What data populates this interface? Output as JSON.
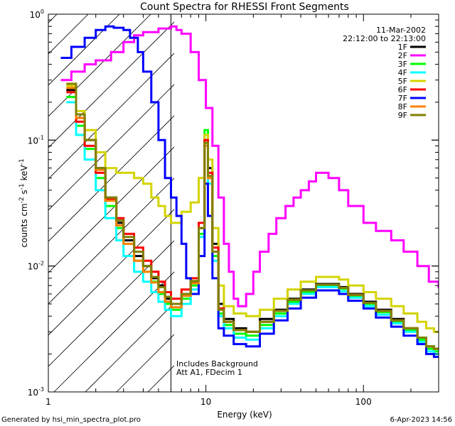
{
  "footer": {
    "generated_by": "Generated by hsi_min_spectra_plot.pro",
    "date": "6-Apr-2023 14:56"
  },
  "chart_data": {
    "type": "line",
    "title": "Count Spectra for RHESSI Front Segments",
    "xlabel": "Energy (keV)",
    "ylabel_parts": [
      "counts cm",
      "-2",
      " s",
      "-1",
      " keV",
      "-1"
    ],
    "x_scale": "log",
    "y_scale": "log",
    "xlim": [
      1,
      300
    ],
    "ylim": [
      0.001,
      1.0
    ],
    "x_ticks": [
      {
        "value": 1,
        "label": "1"
      },
      {
        "value": 10,
        "label": "10"
      },
      {
        "value": 100,
        "label": "100"
      }
    ],
    "y_ticks": [
      {
        "value": 1.0,
        "base": "10",
        "exp": "0"
      },
      {
        "value": 0.1,
        "base": "10",
        "exp": "-1"
      },
      {
        "value": 0.01,
        "base": "10",
        "exp": "-2"
      },
      {
        "value": 0.001,
        "base": "10",
        "exp": "-3"
      }
    ],
    "date": "11-Mar-2002",
    "time_range": "22:12:00 to 22:13:00",
    "hatched_region_max_energy": 6.0,
    "annotations": [
      "Includes Background",
      "Att A1, FDecim 1"
    ],
    "legend_position": "top-right",
    "series": [
      {
        "name": "1F",
        "color": "#000000",
        "energy": [
          1.3,
          1.5,
          1.7,
          2.0,
          2.3,
          2.7,
          3.0,
          3.5,
          4.0,
          4.5,
          5.0,
          5.5,
          6.0,
          7.0,
          8.0,
          9.0,
          9.8,
          10.3,
          11.0,
          12.0,
          13.0,
          15.0,
          18.0,
          22.0,
          27.0,
          33.0,
          40.0,
          50.0,
          60.0,
          70.0,
          80.0,
          100.0,
          120.0,
          150.0,
          180.0,
          220.0,
          250.0,
          280.0
        ],
        "values": [
          0.25,
          0.15,
          0.1,
          0.06,
          0.035,
          0.022,
          0.016,
          0.012,
          0.01,
          0.008,
          0.007,
          0.0055,
          0.005,
          0.006,
          0.0075,
          0.02,
          0.1,
          0.06,
          0.015,
          0.005,
          0.0038,
          0.0032,
          0.003,
          0.0038,
          0.0045,
          0.0055,
          0.0065,
          0.0072,
          0.0072,
          0.0068,
          0.006,
          0.0052,
          0.0045,
          0.0038,
          0.0032,
          0.0027,
          0.0023,
          0.0022
        ]
      },
      {
        "name": "2F",
        "color": "#ff00ff",
        "energy": [
          1.2,
          1.4,
          1.7,
          2.0,
          2.5,
          3.0,
          3.5,
          4.0,
          5.0,
          6.0,
          6.5,
          7.0,
          8.0,
          9.0,
          10.0,
          11.0,
          12.0,
          13.0,
          14.0,
          15.0,
          16.0,
          18.0,
          20.0,
          22.0,
          25.0,
          28.0,
          32.0,
          36.0,
          40.0,
          45.0,
          50.0,
          55.0,
          60.0,
          70.0,
          80.0,
          100.0,
          120.0,
          150.0,
          180.0,
          220.0,
          260.0,
          300.0
        ],
        "values": [
          0.3,
          0.35,
          0.4,
          0.43,
          0.5,
          0.6,
          0.68,
          0.72,
          0.77,
          0.8,
          0.75,
          0.7,
          0.5,
          0.3,
          0.18,
          0.09,
          0.035,
          0.015,
          0.009,
          0.0055,
          0.0048,
          0.006,
          0.009,
          0.013,
          0.018,
          0.024,
          0.03,
          0.035,
          0.04,
          0.047,
          0.055,
          0.055,
          0.05,
          0.04,
          0.03,
          0.022,
          0.019,
          0.016,
          0.013,
          0.01,
          0.0075,
          0.0068
        ]
      },
      {
        "name": "3F",
        "color": "#00ff00",
        "energy": [
          1.3,
          1.5,
          1.7,
          2.0,
          2.3,
          2.7,
          3.0,
          3.5,
          4.0,
          4.5,
          5.0,
          5.5,
          6.0,
          7.0,
          8.0,
          9.0,
          9.8,
          10.3,
          11.0,
          12.0,
          13.0,
          15.0,
          18.0,
          22.0,
          27.0,
          33.0,
          40.0,
          50.0,
          60.0,
          70.0,
          80.0,
          100.0,
          120.0,
          150.0,
          180.0,
          220.0,
          250.0,
          280.0
        ],
        "values": [
          0.22,
          0.13,
          0.085,
          0.05,
          0.03,
          0.02,
          0.015,
          0.011,
          0.009,
          0.0075,
          0.006,
          0.005,
          0.0045,
          0.0055,
          0.007,
          0.018,
          0.12,
          0.05,
          0.012,
          0.0042,
          0.0034,
          0.0029,
          0.0028,
          0.0034,
          0.0042,
          0.0052,
          0.0062,
          0.007,
          0.007,
          0.0066,
          0.0058,
          0.005,
          0.0043,
          0.0036,
          0.0031,
          0.0026,
          0.0022,
          0.0021
        ]
      },
      {
        "name": "4F",
        "color": "#00ffff",
        "energy": [
          1.3,
          1.5,
          1.7,
          2.0,
          2.3,
          2.7,
          3.0,
          3.5,
          4.0,
          4.5,
          5.0,
          5.5,
          6.0,
          7.0,
          8.0,
          9.0,
          9.8,
          10.3,
          11.0,
          12.0,
          13.0,
          15.0,
          18.0,
          22.0,
          27.0,
          33.0,
          40.0,
          50.0,
          60.0,
          70.0,
          80.0,
          100.0,
          120.0,
          150.0,
          180.0,
          220.0,
          250.0,
          280.0
        ],
        "values": [
          0.2,
          0.11,
          0.07,
          0.04,
          0.024,
          0.016,
          0.012,
          0.009,
          0.0075,
          0.0062,
          0.0052,
          0.0045,
          0.004,
          0.005,
          0.0065,
          0.017,
          0.09,
          0.045,
          0.011,
          0.004,
          0.0032,
          0.0027,
          0.0026,
          0.0032,
          0.004,
          0.005,
          0.006,
          0.0068,
          0.0068,
          0.0063,
          0.0056,
          0.0048,
          0.0041,
          0.0035,
          0.003,
          0.0025,
          0.0021,
          0.002
        ]
      },
      {
        "name": "5F",
        "color": "#d4d400",
        "energy": [
          1.3,
          1.5,
          1.7,
          2.0,
          2.3,
          2.7,
          3.0,
          3.5,
          4.0,
          4.5,
          5.0,
          5.5,
          6.0,
          7.0,
          8.0,
          9.0,
          9.8,
          10.3,
          11.0,
          12.0,
          13.0,
          15.0,
          18.0,
          22.0,
          27.0,
          33.0,
          40.0,
          50.0,
          60.0,
          70.0,
          80.0,
          100.0,
          120.0,
          150.0,
          180.0,
          220.0,
          250.0,
          280.0
        ],
        "values": [
          0.27,
          0.17,
          0.12,
          0.08,
          0.06,
          0.055,
          0.055,
          0.05,
          0.045,
          0.035,
          0.03,
          0.025,
          0.022,
          0.027,
          0.032,
          0.05,
          0.11,
          0.07,
          0.02,
          0.007,
          0.0048,
          0.0042,
          0.004,
          0.0045,
          0.0055,
          0.0065,
          0.0075,
          0.0082,
          0.0082,
          0.0078,
          0.007,
          0.0062,
          0.0055,
          0.0048,
          0.0042,
          0.0036,
          0.0032,
          0.003
        ]
      },
      {
        "name": "6F",
        "color": "#ff0000",
        "energy": [
          1.3,
          1.5,
          1.7,
          2.0,
          2.3,
          2.7,
          3.0,
          3.5,
          4.0,
          4.5,
          5.0,
          5.5,
          6.0,
          7.0,
          8.0,
          9.0,
          9.8,
          10.3,
          11.0,
          12.0,
          13.0,
          15.0,
          18.0,
          22.0,
          27.0,
          33.0,
          40.0,
          50.0,
          60.0,
          70.0,
          80.0,
          100.0,
          120.0,
          150.0,
          180.0,
          220.0,
          250.0,
          280.0
        ],
        "values": [
          0.24,
          0.14,
          0.09,
          0.055,
          0.034,
          0.024,
          0.018,
          0.014,
          0.011,
          0.009,
          0.0075,
          0.0062,
          0.0055,
          0.0065,
          0.008,
          0.022,
          0.1,
          0.055,
          0.014,
          0.0046,
          0.0036,
          0.0031,
          0.003,
          0.0036,
          0.0044,
          0.0054,
          0.0064,
          0.0071,
          0.0071,
          0.0067,
          0.0059,
          0.0051,
          0.0044,
          0.0037,
          0.0032,
          0.0027,
          0.0023,
          0.0022
        ]
      },
      {
        "name": "7F",
        "color": "#0000ff",
        "energy": [
          1.2,
          1.4,
          1.7,
          2.0,
          2.3,
          2.6,
          3.0,
          3.3,
          3.7,
          4.0,
          4.5,
          5.0,
          5.5,
          6.0,
          6.5,
          7.0,
          7.5,
          8.0,
          9.0,
          9.8,
          10.3,
          11.0,
          12.0,
          13.0,
          15.0,
          18.0,
          22.0,
          27.0,
          33.0,
          40.0,
          50.0,
          60.0,
          70.0,
          80.0,
          100.0,
          120.0,
          150.0,
          180.0,
          220.0,
          250.0,
          280.0
        ],
        "values": [
          0.45,
          0.55,
          0.65,
          0.75,
          0.8,
          0.78,
          0.75,
          0.65,
          0.5,
          0.35,
          0.2,
          0.1,
          0.05,
          0.035,
          0.025,
          0.015,
          0.008,
          0.006,
          0.012,
          0.045,
          0.025,
          0.008,
          0.0032,
          0.0028,
          0.0024,
          0.0023,
          0.0029,
          0.0037,
          0.0046,
          0.0056,
          0.0064,
          0.0064,
          0.006,
          0.0053,
          0.0046,
          0.0039,
          0.0033,
          0.0028,
          0.0024,
          0.002,
          0.0019
        ]
      },
      {
        "name": "8F",
        "color": "#ff8000",
        "energy": [
          1.3,
          1.5,
          1.7,
          2.0,
          2.3,
          2.7,
          3.0,
          3.5,
          4.0,
          4.5,
          5.0,
          5.5,
          6.0,
          7.0,
          8.0,
          9.0,
          9.8,
          10.3,
          11.0,
          12.0,
          13.0,
          15.0,
          18.0,
          22.0,
          27.0,
          33.0,
          40.0,
          50.0,
          60.0,
          70.0,
          80.0,
          100.0,
          120.0,
          150.0,
          180.0,
          220.0,
          250.0,
          280.0
        ],
        "values": [
          0.26,
          0.15,
          0.1,
          0.058,
          0.033,
          0.021,
          0.015,
          0.011,
          0.009,
          0.0074,
          0.0062,
          0.0052,
          0.0047,
          0.0058,
          0.0073,
          0.02,
          0.09,
          0.05,
          0.013,
          0.0045,
          0.0036,
          0.0031,
          0.003,
          0.0036,
          0.0044,
          0.0054,
          0.0064,
          0.0071,
          0.0071,
          0.0067,
          0.0059,
          0.0051,
          0.0044,
          0.0037,
          0.0032,
          0.0027,
          0.0023,
          0.0022
        ]
      },
      {
        "name": "9F",
        "color": "#808000",
        "energy": [
          1.3,
          1.5,
          1.7,
          2.0,
          2.3,
          2.7,
          3.0,
          3.5,
          4.0,
          4.5,
          5.0,
          5.5,
          6.0,
          7.0,
          8.0,
          9.0,
          9.8,
          10.3,
          11.0,
          12.0,
          13.0,
          15.0,
          18.0,
          22.0,
          27.0,
          33.0,
          40.0,
          50.0,
          60.0,
          70.0,
          80.0,
          100.0,
          120.0,
          150.0,
          180.0,
          220.0,
          250.0,
          280.0
        ],
        "values": [
          0.28,
          0.16,
          0.1,
          0.06,
          0.035,
          0.023,
          0.017,
          0.013,
          0.01,
          0.0082,
          0.0068,
          0.0057,
          0.005,
          0.006,
          0.0076,
          0.02,
          0.095,
          0.052,
          0.013,
          0.0045,
          0.0036,
          0.0031,
          0.003,
          0.0036,
          0.0044,
          0.0054,
          0.0064,
          0.0071,
          0.0071,
          0.0067,
          0.0059,
          0.0051,
          0.0044,
          0.0037,
          0.0032,
          0.0027,
          0.0023,
          0.0022
        ]
      }
    ]
  }
}
